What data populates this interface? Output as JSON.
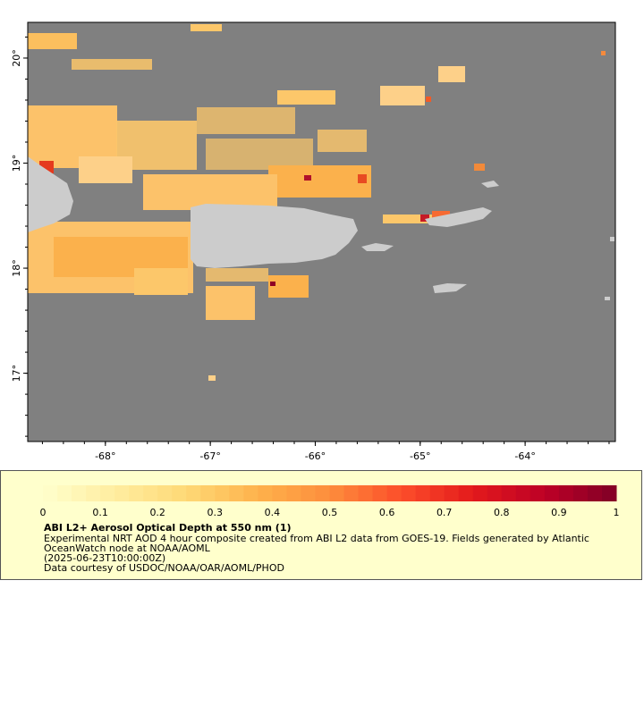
{
  "map": {
    "lon_ticks": [
      {
        "value": -68,
        "label": "-68°"
      },
      {
        "value": -67,
        "label": "-67°"
      },
      {
        "value": -66,
        "label": "-66°"
      },
      {
        "value": -65,
        "label": "-65°"
      },
      {
        "value": -64,
        "label": "-64°"
      }
    ],
    "lat_ticks": [
      {
        "value": 20,
        "label": "20°"
      },
      {
        "value": 19,
        "label": "19°"
      },
      {
        "value": 18,
        "label": "18°"
      },
      {
        "value": 17,
        "label": "17°"
      }
    ],
    "ocean_color": "#808080",
    "land_color": "#cccccc"
  },
  "legend": {
    "ticks": [
      "0",
      "0.1",
      "0.2",
      "0.3",
      "0.4",
      "0.5",
      "0.6",
      "0.7",
      "0.8",
      "0.9",
      "1"
    ],
    "title": "ABI L2+ Aerosol Optical Depth at 550 nm (1)",
    "description": "Experimental NRT AOD 4 hour composite created from ABI L2 data from GOES-19. Fields generated by Atlantic OceanWatch node at NOAA/AOML",
    "timestamp": "(2025-06-23T10:00:00Z)",
    "credit": "Data courtesy of USDOC/NOAA/OAR/AOML/PHOD",
    "colors": [
      "#ffffcc",
      "#ffeda0",
      "#fed976",
      "#feb24c",
      "#fd8d3c",
      "#fc4e2a",
      "#e31a1c",
      "#bd0026",
      "#800026"
    ]
  }
}
